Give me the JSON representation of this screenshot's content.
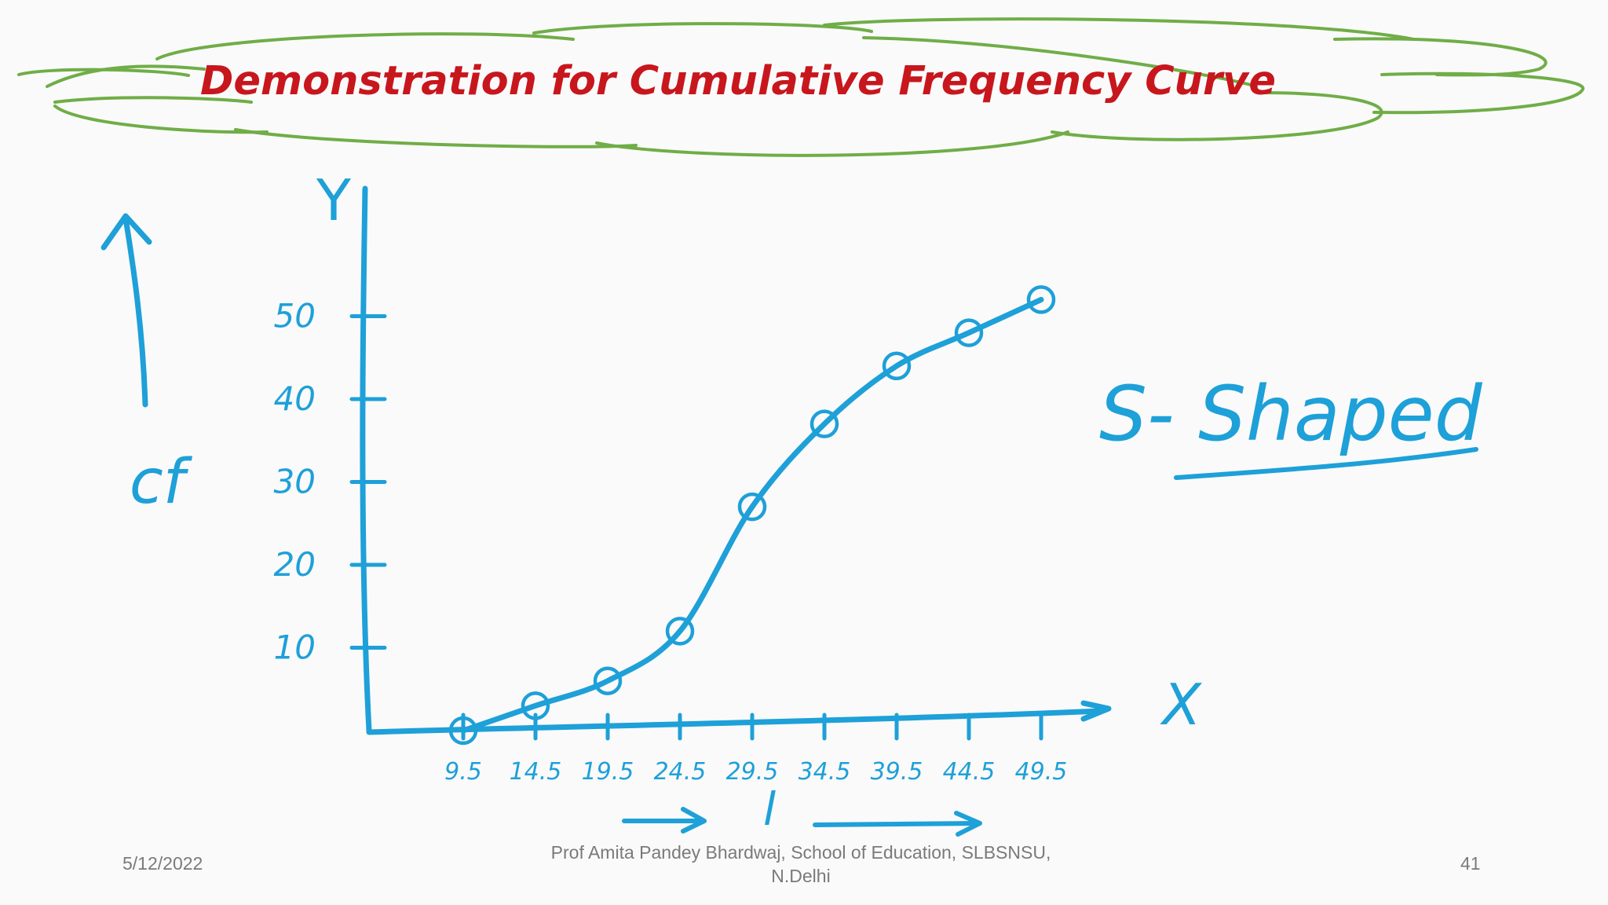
{
  "slide": {
    "title": "Demonstration for Cumulative Frequency Curve",
    "annotation": "S- Shaped",
    "y_side_label": "cf",
    "x_side_label": "l",
    "colors": {
      "ink": "#1ea0d8",
      "title": "#c8161d",
      "cloud": "#70ad47"
    }
  },
  "footer": {
    "date": "5/12/2022",
    "author": "Prof Amita Pandey Bhardwaj, School of Education, SLBSNSU, N.Delhi",
    "page": "41"
  },
  "chart_data": {
    "type": "line",
    "xlabel": "X",
    "ylabel": "Y",
    "x_tick_labels": [
      "9.5",
      "14.5",
      "19.5",
      "24.5",
      "29.5",
      "34.5",
      "39.5",
      "44.5",
      "49.5"
    ],
    "y_ticks": [
      10,
      20,
      30,
      40,
      50
    ],
    "y_tick_labels": [
      "10",
      "20",
      "30",
      "40",
      "50"
    ],
    "ylim": [
      0,
      55
    ],
    "series": [
      {
        "values": [
          0,
          3,
          6,
          12,
          27,
          37,
          44,
          48,
          52
        ]
      }
    ],
    "grid": false,
    "legend": "none"
  }
}
